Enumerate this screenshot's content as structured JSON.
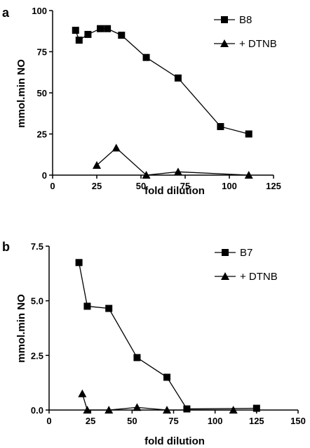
{
  "chart_data": [
    {
      "panel": "a",
      "type": "line",
      "title": "",
      "xlabel": "fold dilution",
      "ylabel": "mmol.min NO",
      "xlim": [
        0,
        125
      ],
      "ylim": [
        0,
        100
      ],
      "xticks": [
        0,
        25,
        50,
        75,
        100,
        125
      ],
      "yticks": [
        0,
        25,
        50,
        75,
        100
      ],
      "legend_position": "top-right",
      "series": [
        {
          "name": "B8",
          "marker": "square",
          "points": [
            [
              13,
              88
            ],
            [
              15,
              82
            ],
            [
              20,
              85.5
            ],
            [
              27,
              89
            ],
            [
              31,
              89
            ],
            [
              39,
              85
            ],
            [
              53,
              71.5
            ],
            [
              71,
              59
            ],
            [
              95,
              29.5
            ],
            [
              111,
              25
            ]
          ]
        },
        {
          "name": "+ DTNB",
          "marker": "triangle",
          "points": [
            [
              25,
              6
            ],
            [
              36,
              16.5
            ],
            [
              53,
              0
            ],
            [
              71,
              2
            ],
            [
              111,
              0
            ]
          ]
        }
      ]
    },
    {
      "panel": "b",
      "type": "line",
      "title": "",
      "xlabel": "fold dilution",
      "ylabel": "mmol.min NO",
      "xlim": [
        0,
        150
      ],
      "ylim": [
        0,
        7.5
      ],
      "xticks": [
        0,
        25,
        50,
        75,
        100,
        125,
        150
      ],
      "yticks": [
        0.0,
        2.5,
        5.0,
        7.5
      ],
      "ytick_labels": [
        "0.0",
        "2.5",
        "5.0",
        "7.5"
      ],
      "legend_position": "top-right",
      "series": [
        {
          "name": "B7",
          "marker": "square",
          "points": [
            [
              18,
              6.75
            ],
            [
              23,
              4.75
            ],
            [
              36,
              4.65
            ],
            [
              53,
              2.4
            ],
            [
              71,
              1.5
            ],
            [
              83,
              0.05
            ],
            [
              125,
              0.08
            ]
          ]
        },
        {
          "name": "+ DTNB",
          "marker": "triangle",
          "points": [
            [
              20,
              0.75
            ],
            [
              23,
              0
            ],
            [
              36,
              0
            ],
            [
              53,
              0.12
            ],
            [
              71,
              0
            ],
            [
              111,
              0
            ]
          ]
        }
      ]
    }
  ]
}
